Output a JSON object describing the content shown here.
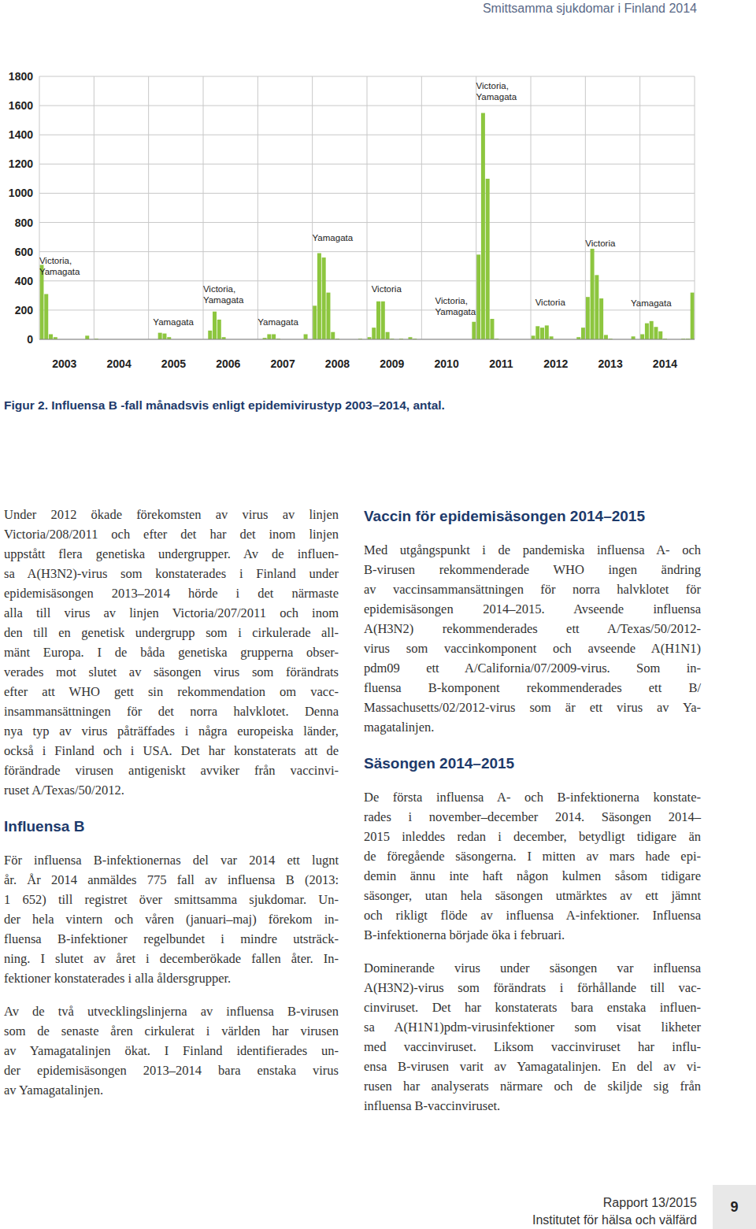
{
  "header": "Smittsamma sjukdomar i Finland 2014",
  "chart_data": {
    "type": "bar",
    "categories": [
      null,
      null,
      null,
      null,
      null,
      "2003",
      null,
      null,
      null,
      null,
      null,
      null,
      null,
      null,
      null,
      null,
      null,
      "2004",
      null,
      null,
      null,
      null,
      null,
      null,
      null,
      null,
      null,
      null,
      null,
      "2005",
      null,
      null,
      null,
      null,
      null,
      null,
      null,
      null,
      null,
      null,
      null,
      "2006",
      null,
      null,
      null,
      null,
      null,
      null,
      null,
      null,
      null,
      null,
      null,
      "2007",
      null,
      null,
      null,
      null,
      null,
      null,
      null,
      null,
      null,
      null,
      null,
      "2008",
      null,
      null,
      null,
      null,
      null,
      null,
      null,
      null,
      null,
      null,
      null,
      "2009",
      null,
      null,
      null,
      null,
      null,
      null,
      null,
      null,
      null,
      null,
      null,
      "2010",
      null,
      null,
      null,
      null,
      null,
      null,
      null,
      null,
      null,
      null,
      null,
      "2011",
      null,
      null,
      null,
      null,
      null,
      null,
      null,
      null,
      null,
      null,
      null,
      "2012",
      null,
      null,
      null,
      null,
      null,
      null,
      null,
      null,
      null,
      null,
      null,
      "2013",
      null,
      null,
      null,
      null,
      null,
      null,
      null,
      null,
      null,
      null,
      null,
      "2014",
      null,
      null,
      null,
      null,
      null,
      null
    ],
    "values": [
      510,
      310,
      35,
      15,
      0,
      0,
      0,
      0,
      0,
      0,
      25,
      0,
      5,
      0,
      0,
      0,
      0,
      0,
      0,
      0,
      0,
      0,
      0,
      0,
      0,
      0,
      45,
      40,
      15,
      0,
      0,
      0,
      0,
      0,
      0,
      0,
      0,
      60,
      190,
      135,
      15,
      0,
      0,
      0,
      0,
      0,
      0,
      0,
      0,
      10,
      35,
      35,
      5,
      0,
      0,
      0,
      0,
      0,
      35,
      0,
      230,
      590,
      560,
      320,
      50,
      5,
      0,
      0,
      0,
      0,
      5,
      0,
      15,
      80,
      260,
      260,
      50,
      5,
      0,
      5,
      0,
      15,
      5,
      0,
      0,
      0,
      0,
      0,
      0,
      0,
      0,
      0,
      0,
      0,
      0,
      120,
      580,
      1550,
      1100,
      140,
      5,
      0,
      0,
      0,
      0,
      0,
      0,
      0,
      25,
      90,
      80,
      95,
      20,
      0,
      0,
      0,
      0,
      0,
      15,
      80,
      290,
      620,
      440,
      280,
      30,
      5,
      0,
      0,
      0,
      0,
      20,
      0,
      35,
      110,
      125,
      85,
      55,
      5,
      0,
      0,
      0,
      5,
      5,
      320
    ],
    "color": "#8dc63f",
    "ylim": [
      0,
      1800
    ],
    "yticks": [
      0,
      200,
      400,
      600,
      800,
      1000,
      1200,
      1400,
      1600,
      1800
    ],
    "grid": true,
    "annotations": [
      {
        "text": [
          "Victoria,",
          "Yamagata"
        ],
        "x": 0,
        "y": 442
      },
      {
        "text": [
          "Yamagata"
        ],
        "x": 25,
        "y": 97
      },
      {
        "text": [
          "Victoria,",
          "Yamagata"
        ],
        "x": 36,
        "y": 248
      },
      {
        "text": [
          "Yamagata"
        ],
        "x": 48,
        "y": 97
      },
      {
        "text": [
          "Yamagata"
        ],
        "x": 60,
        "y": 673
      },
      {
        "text": [
          "Victoria"
        ],
        "x": 73,
        "y": 323
      },
      {
        "text": [
          "Victoria,",
          "Yamagata"
        ],
        "x": 87,
        "y": 167
      },
      {
        "text": [
          "Victoria,",
          "Yamagata"
        ],
        "x": 96,
        "y": 1638
      },
      {
        "text": [
          "Victoria"
        ],
        "x": 109,
        "y": 232
      },
      {
        "text": [
          "Victoria"
        ],
        "x": 120,
        "y": 636
      },
      {
        "text": [
          "Yamagata"
        ],
        "x": 130,
        "y": 226
      }
    ]
  },
  "caption": "Figur 2. Influensa B -fall månadsvis enligt epidemivirustyp 2003–2014, antal.",
  "left_column": [
    {
      "paragraph": [
        "Under 2012 ökade förekomsten av virus av linjen",
        "Victoria/208/2011 och efter det har det inom linjen",
        "uppstått flera genetiska undergrupper. Av de influen-",
        "sa A(H3N2)-virus som konstaterades i Finland under",
        "epidemisäsongen 2013–2014 hörde i det närmaste",
        "alla till virus av linjen Victoria/207/2011 och inom",
        "den till en genetisk undergrupp som i cirkulerade all-",
        "mänt Europa. I de båda genetiska grupperna obser-",
        "verades mot slutet av säsongen virus som förändrats",
        "efter att WHO gett sin rekommendation om vacc-",
        "insammansättningen för det norra halvklotet. Denna",
        "nya typ av virus påträffades i några europeiska länder,",
        "också i Finland och i USA. Det har konstaterats att de",
        "förändrade virusen antigeniskt avviker från vaccinvi-",
        "ruset A/Texas/50/2012."
      ]
    },
    {
      "heading": "Influensa B"
    },
    {
      "paragraph": [
        "För influensa B-infektionernas del var 2014 ett lugnt",
        "år. År 2014 anmäldes 775 fall av influensa B (2013:",
        "1 652) till registret över smittsamma sjukdomar. Un-",
        "der hela vintern och våren (januari–maj) förekom in-",
        "fluensa B-infektioner regelbundet i mindre utsträck-",
        "ning. I slutet av året i decemberökade fallen åter. In-",
        "fektioner konstaterades i alla åldersgrupper."
      ]
    },
    {
      "paragraph": [
        "Av de två utvecklingslinjerna av influensa B-virusen",
        "som de senaste åren cirkulerat i världen har virusen",
        "av Yamagatalinjen ökat. I Finland identifierades un-",
        "der epidemisäsongen 2013–2014 bara enstaka virus",
        "av Yamagatalinjen."
      ]
    }
  ],
  "right_column": [
    {
      "heading": "Vaccin för epidemisäsongen 2014–2015"
    },
    {
      "paragraph": [
        "Med utgångspunkt i de pandemiska influensa A- och",
        "B-virusen rekommenderade WHO ingen ändring",
        "av vaccinsammansättningen för norra halvklotet för",
        "epidemisäsongen 2014–2015. Avseende influensa",
        "A(H3N2) rekommenderades ett A/Texas/50/2012-",
        "virus som vaccinkomponent och avseende A(H1N1)",
        "pdm09 ett A/California/07/2009-virus. Som in-",
        "fluensa B-komponent rekommenderades ett B/",
        "Massachusetts/02/2012-virus som är ett virus av Ya-",
        "magatalinjen."
      ]
    },
    {
      "heading": "Säsongen 2014–2015"
    },
    {
      "paragraph": [
        "De första influensa A- och B-infektionerna konstate-",
        "rades i november–december 2014. Säsongen 2014–",
        "2015 inleddes redan i december, betydligt tidigare än",
        "de föregående säsongerna. I mitten av mars hade epi-",
        "demin ännu inte haft någon kulmen såsom tidigare",
        "säsonger, utan hela säsongen utmärktes av ett jämnt",
        "och rikligt flöde av influensa A-infektioner. Influensa",
        "B-infektionerna började öka i februari."
      ]
    },
    {
      "paragraph": [
        "Dominerande virus under säsongen var influensa",
        "A(H3N2)-virus som förändrats i förhållande till vac-",
        "cinviruset. Det har konstaterats bara enstaka influen-",
        "sa A(H1N1)pdm-virusinfektioner som visat likheter",
        "med vaccinviruset. Liksom vaccinviruset har influ-",
        "ensa B-virusen varit av Yamagatalinjen. En del av vi-",
        "rusen har analyserats närmare och de skiljde sig från",
        "influensa B-vaccinviruset."
      ]
    }
  ],
  "footer": {
    "report": "Rapport 13/2015",
    "institute": "Institutet för hälsa och välfärd",
    "page": 9
  }
}
